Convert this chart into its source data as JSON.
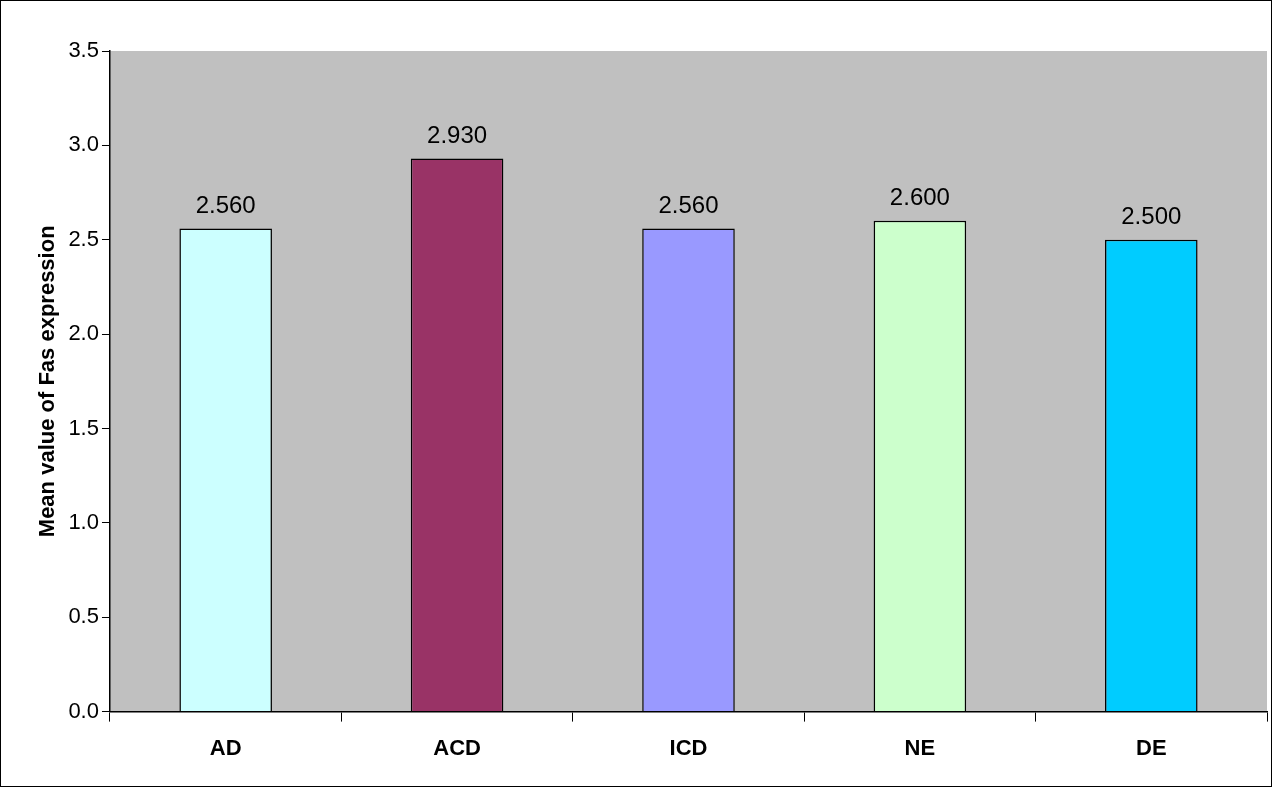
{
  "chart_data": {
    "type": "bar",
    "ylabel": "Mean value of Fas expression",
    "categories": [
      "AD",
      "ACD",
      "ICD",
      "NE",
      "DE"
    ],
    "values": [
      2.56,
      2.93,
      2.56,
      2.6,
      2.5
    ],
    "colors": [
      "#ccffff",
      "#993366",
      "#9999ff",
      "#ccffcc",
      "#00ccff"
    ],
    "value_labels": [
      "2.560",
      "2.930",
      "2.560",
      "2.600",
      "2.500"
    ],
    "ylim": [
      0,
      3.5
    ],
    "yticks": [
      {
        "value": 0,
        "label": "0.0"
      },
      {
        "value": 0.5,
        "label": "0.5"
      },
      {
        "value": 1,
        "label": "1.0"
      },
      {
        "value": 1.5,
        "label": "1.5"
      },
      {
        "value": 2,
        "label": "2.0"
      },
      {
        "value": 2.5,
        "label": "2.5"
      },
      {
        "value": 3,
        "label": "3.0"
      },
      {
        "value": 3.5,
        "label": "3.5"
      }
    ],
    "grid": false,
    "legend": false
  }
}
